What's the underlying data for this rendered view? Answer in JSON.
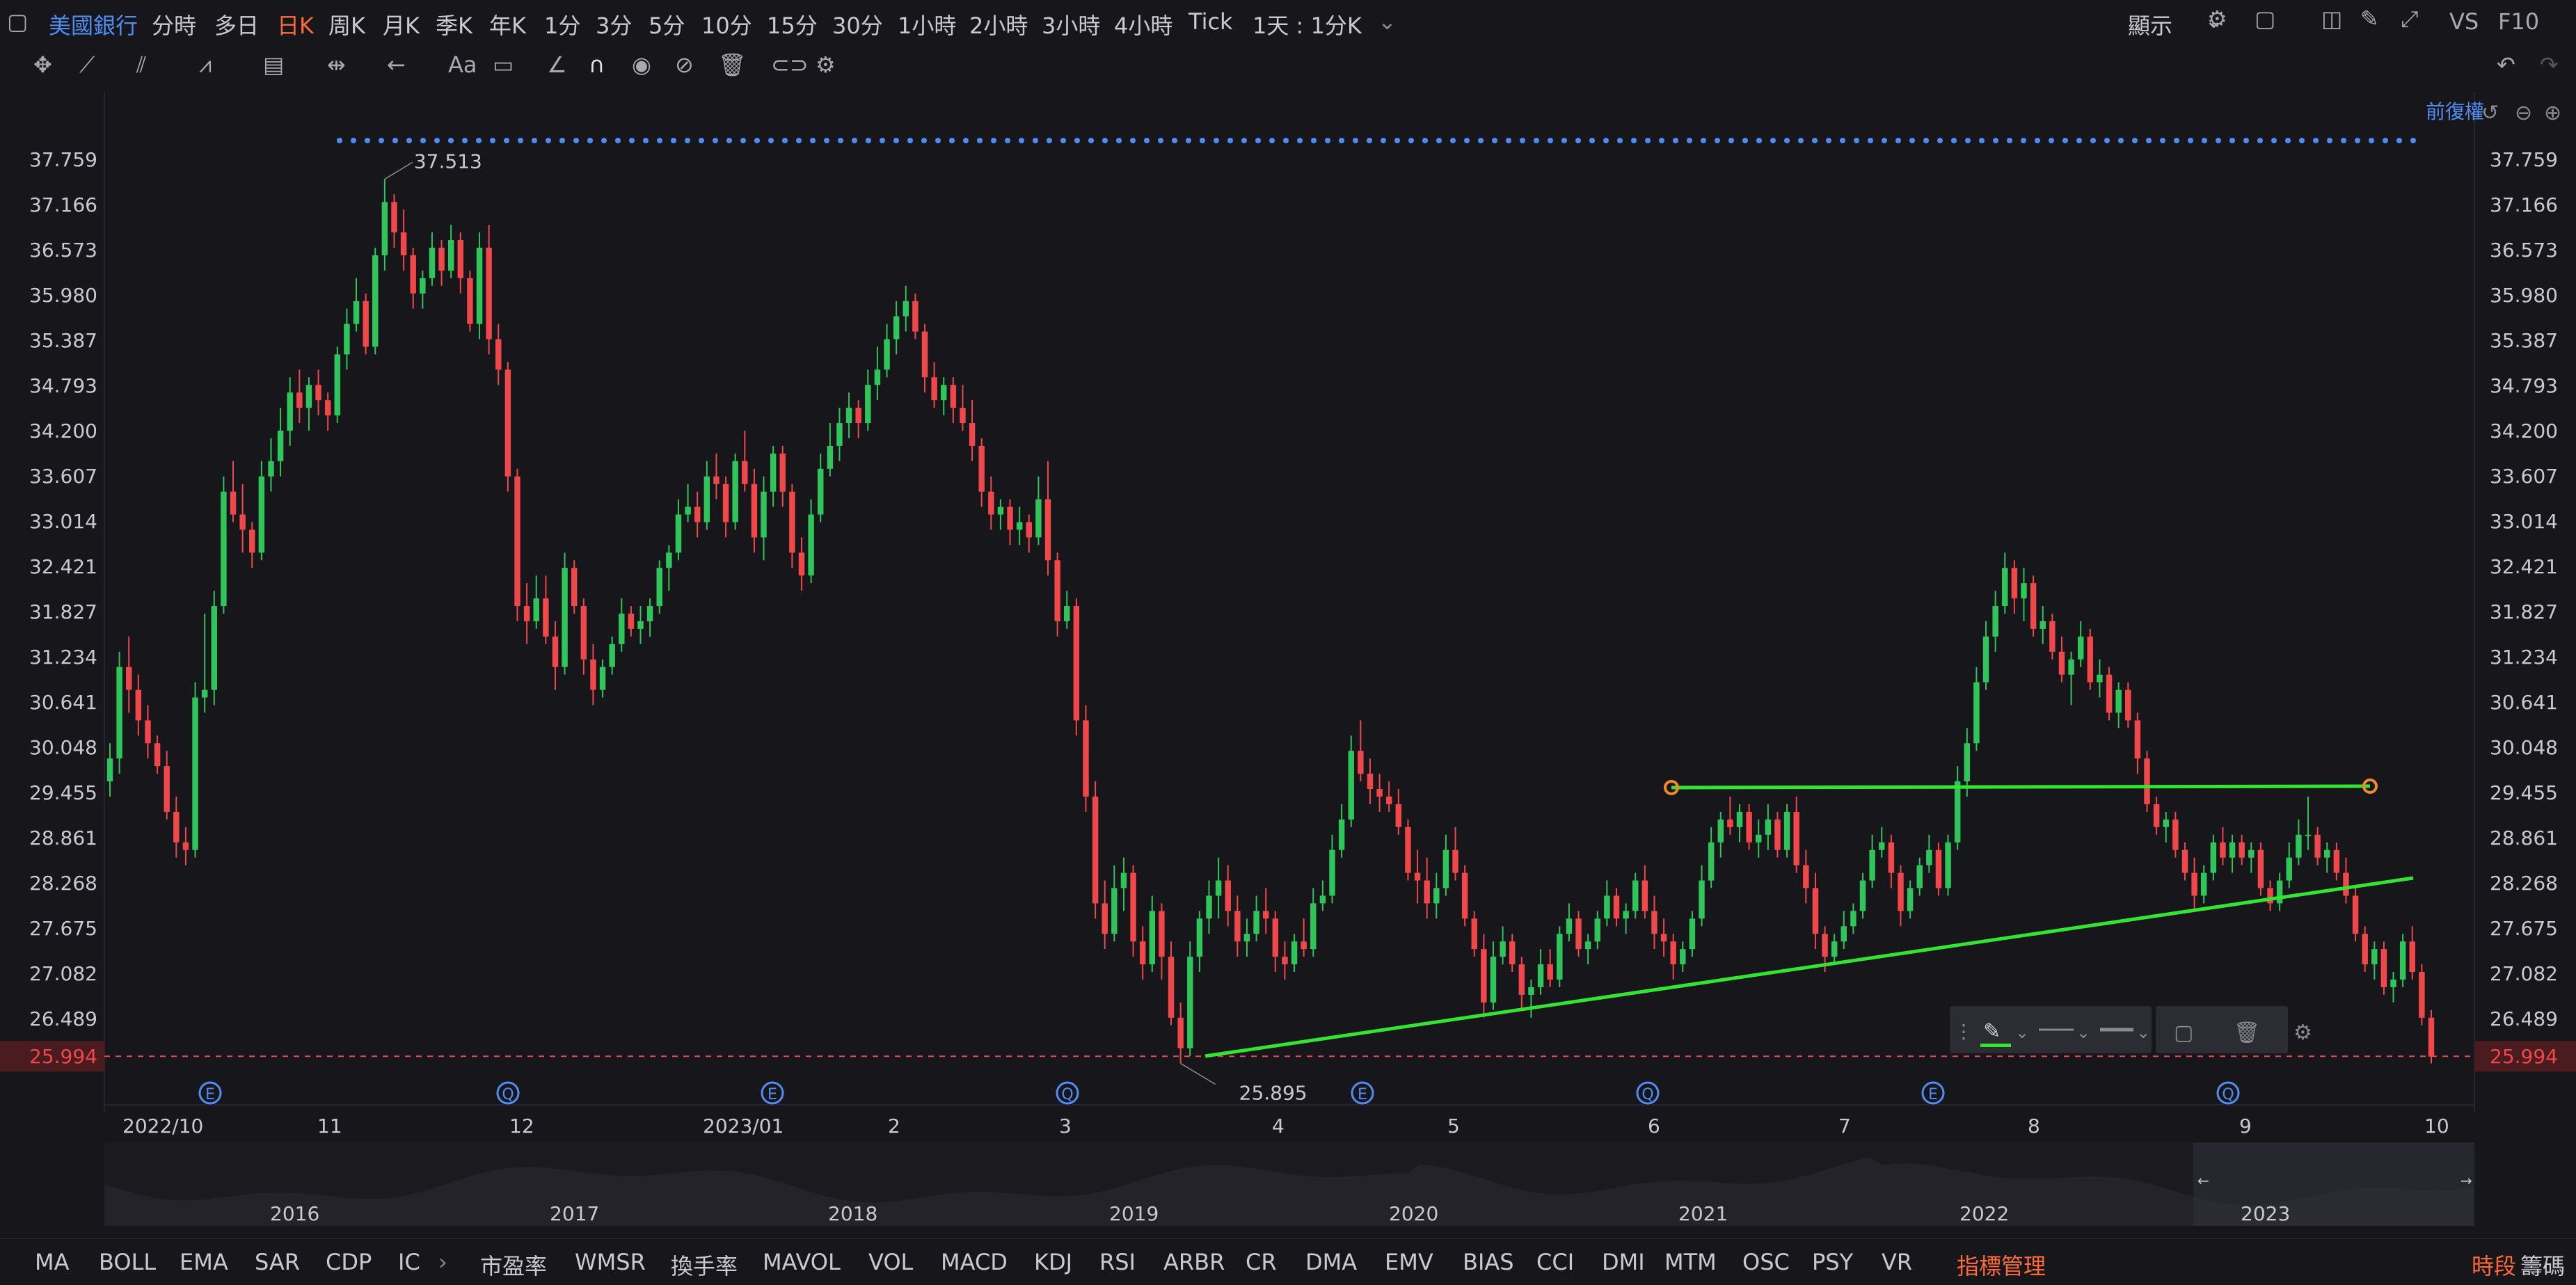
{
  "header": {
    "symbol": "美國銀行",
    "periods": [
      "分時",
      "多日",
      "日K",
      "周K",
      "月K",
      "季K",
      "年K",
      "1分",
      "3分",
      "5分",
      "10分",
      "15分",
      "30分",
      "1小時",
      "2小時",
      "3小時",
      "4小時",
      "Tick"
    ],
    "active_period": "日K",
    "range": "1天 : 1分K",
    "display": "顯示",
    "vs": "VS",
    "f10": "F10",
    "adjust": "前復權"
  },
  "chart_data": {
    "type": "candlestick",
    "y_ticks": [
      37.759,
      37.166,
      36.573,
      35.98,
      35.387,
      34.793,
      34.2,
      33.607,
      33.014,
      32.421,
      31.827,
      31.234,
      30.641,
      30.048,
      29.455,
      28.861,
      28.268,
      27.675,
      27.082,
      26.489
    ],
    "current_price": 25.994,
    "x_ticks": [
      "2022/10",
      "11",
      "12",
      "2023/01",
      "2",
      "3",
      "4",
      "5",
      "6",
      "7",
      "8",
      "9",
      "10"
    ],
    "annotations": {
      "high_label": "37.513",
      "low_label": "25.895"
    },
    "event_markers": [
      "E",
      "Q",
      "E",
      "Q",
      "E",
      "Q",
      "E",
      "Q"
    ],
    "navigator_years": [
      "2016",
      "2017",
      "2018",
      "2019",
      "2020",
      "2021",
      "2022",
      "2023"
    ],
    "colors": {
      "up": "#2fc55a",
      "down": "#f0474b",
      "trendline": "#33e433",
      "dots": "#4f8df5",
      "current": "#f0474b",
      "marker": "#4f8df5"
    },
    "candles": [
      [
        29.6,
        30.1,
        29.4,
        29.9
      ],
      [
        29.9,
        31.3,
        29.7,
        31.1
      ],
      [
        31.1,
        31.5,
        30.5,
        30.8
      ],
      [
        30.8,
        31.0,
        30.2,
        30.4
      ],
      [
        30.4,
        30.6,
        29.9,
        30.1
      ],
      [
        30.1,
        30.2,
        29.7,
        29.8
      ],
      [
        29.8,
        30.0,
        29.1,
        29.2
      ],
      [
        29.2,
        29.4,
        28.6,
        28.8
      ],
      [
        28.8,
        29.0,
        28.5,
        28.7
      ],
      [
        28.7,
        30.9,
        28.6,
        30.7
      ],
      [
        30.7,
        31.8,
        30.5,
        30.8
      ],
      [
        30.8,
        32.1,
        30.6,
        31.9
      ],
      [
        31.9,
        33.6,
        31.8,
        33.4
      ],
      [
        33.4,
        33.8,
        33.0,
        33.1
      ],
      [
        33.1,
        33.5,
        32.6,
        32.9
      ],
      [
        32.9,
        33.0,
        32.4,
        32.6
      ],
      [
        32.6,
        33.8,
        32.5,
        33.6
      ],
      [
        33.6,
        34.1,
        33.4,
        33.8
      ],
      [
        33.8,
        34.5,
        33.6,
        34.2
      ],
      [
        34.2,
        34.9,
        34.0,
        34.7
      ],
      [
        34.7,
        35.0,
        34.3,
        34.5
      ],
      [
        34.5,
        34.9,
        34.2,
        34.8
      ],
      [
        34.8,
        35.0,
        34.4,
        34.6
      ],
      [
        34.6,
        34.7,
        34.2,
        34.4
      ],
      [
        34.4,
        35.3,
        34.3,
        35.2
      ],
      [
        35.2,
        35.8,
        35.0,
        35.6
      ],
      [
        35.6,
        36.2,
        35.5,
        35.9
      ],
      [
        35.9,
        36.0,
        35.2,
        35.3
      ],
      [
        35.3,
        36.6,
        35.2,
        36.5
      ],
      [
        36.5,
        37.5,
        36.3,
        37.2
      ],
      [
        37.2,
        37.3,
        36.6,
        36.8
      ],
      [
        36.8,
        37.1,
        36.3,
        36.5
      ],
      [
        36.5,
        36.6,
        35.8,
        36.0
      ],
      [
        36.0,
        36.3,
        35.8,
        36.2
      ],
      [
        36.2,
        36.8,
        36.1,
        36.6
      ],
      [
        36.6,
        36.7,
        36.1,
        36.3
      ],
      [
        36.3,
        36.9,
        36.2,
        36.7
      ],
      [
        36.7,
        36.8,
        36.0,
        36.2
      ],
      [
        36.2,
        36.3,
        35.5,
        35.6
      ],
      [
        35.6,
        36.8,
        35.4,
        36.6
      ],
      [
        36.6,
        36.9,
        35.2,
        35.4
      ],
      [
        35.4,
        35.6,
        34.8,
        35.0
      ],
      [
        35.0,
        35.1,
        33.4,
        33.6
      ],
      [
        33.6,
        33.7,
        31.7,
        31.9
      ],
      [
        31.9,
        32.2,
        31.4,
        31.7
      ],
      [
        31.7,
        32.3,
        31.6,
        32.0
      ],
      [
        32.0,
        32.3,
        31.4,
        31.5
      ],
      [
        31.5,
        31.7,
        30.8,
        31.1
      ],
      [
        31.1,
        32.6,
        31.0,
        32.4
      ],
      [
        32.4,
        32.5,
        31.8,
        31.9
      ],
      [
        31.9,
        32.0,
        31.0,
        31.2
      ],
      [
        31.2,
        31.4,
        30.6,
        30.8
      ],
      [
        30.8,
        31.2,
        30.7,
        31.1
      ],
      [
        31.1,
        31.5,
        31.0,
        31.4
      ],
      [
        31.4,
        32.0,
        31.3,
        31.8
      ],
      [
        31.8,
        31.9,
        31.5,
        31.6
      ],
      [
        31.6,
        31.9,
        31.4,
        31.7
      ],
      [
        31.7,
        32.0,
        31.5,
        31.9
      ],
      [
        31.9,
        32.5,
        31.8,
        32.4
      ],
      [
        32.4,
        32.7,
        32.1,
        32.6
      ],
      [
        32.6,
        33.3,
        32.5,
        33.1
      ],
      [
        33.1,
        33.5,
        33.0,
        33.2
      ],
      [
        33.2,
        33.4,
        32.8,
        33.0
      ],
      [
        33.0,
        33.8,
        32.9,
        33.6
      ],
      [
        33.6,
        33.9,
        33.3,
        33.5
      ],
      [
        33.5,
        33.6,
        32.8,
        33.0
      ],
      [
        33.0,
        33.9,
        32.9,
        33.8
      ],
      [
        33.8,
        34.2,
        33.4,
        33.5
      ],
      [
        33.5,
        33.7,
        32.6,
        32.8
      ],
      [
        32.8,
        33.6,
        32.5,
        33.4
      ],
      [
        33.4,
        34.0,
        33.2,
        33.9
      ],
      [
        33.9,
        34.0,
        33.2,
        33.4
      ],
      [
        33.4,
        33.5,
        32.4,
        32.6
      ],
      [
        32.6,
        32.8,
        32.1,
        32.3
      ],
      [
        32.3,
        33.3,
        32.2,
        33.1
      ],
      [
        33.1,
        33.9,
        33.0,
        33.7
      ],
      [
        33.7,
        34.3,
        33.6,
        34.0
      ],
      [
        34.0,
        34.5,
        33.8,
        34.3
      ],
      [
        34.3,
        34.7,
        34.1,
        34.5
      ],
      [
        34.5,
        34.6,
        34.1,
        34.3
      ],
      [
        34.3,
        35.0,
        34.2,
        34.8
      ],
      [
        34.8,
        35.3,
        34.6,
        35.0
      ],
      [
        35.0,
        35.6,
        34.9,
        35.4
      ],
      [
        35.4,
        35.9,
        35.2,
        35.7
      ],
      [
        35.7,
        36.1,
        35.5,
        35.9
      ],
      [
        35.9,
        36.0,
        35.4,
        35.5
      ],
      [
        35.5,
        35.6,
        34.7,
        34.9
      ],
      [
        34.9,
        35.1,
        34.5,
        34.6
      ],
      [
        34.6,
        34.9,
        34.4,
        34.8
      ],
      [
        34.8,
        34.9,
        34.3,
        34.5
      ],
      [
        34.5,
        34.8,
        34.2,
        34.3
      ],
      [
        34.3,
        34.6,
        33.8,
        34.0
      ],
      [
        34.0,
        34.1,
        33.2,
        33.4
      ],
      [
        33.4,
        33.6,
        32.9,
        33.1
      ],
      [
        33.1,
        33.3,
        32.9,
        33.2
      ],
      [
        33.2,
        33.3,
        32.7,
        32.9
      ],
      [
        32.9,
        33.2,
        32.7,
        33.0
      ],
      [
        33.0,
        33.1,
        32.6,
        32.8
      ],
      [
        32.8,
        33.6,
        32.7,
        33.3
      ],
      [
        33.3,
        33.8,
        32.3,
        32.5
      ],
      [
        32.5,
        32.6,
        31.5,
        31.7
      ],
      [
        31.7,
        32.1,
        31.6,
        31.9
      ],
      [
        31.9,
        32.0,
        30.2,
        30.4
      ],
      [
        30.4,
        30.6,
        29.2,
        29.4
      ],
      [
        29.4,
        29.6,
        27.8,
        28.0
      ],
      [
        28.0,
        28.3,
        27.4,
        27.6
      ],
      [
        27.6,
        28.5,
        27.5,
        28.2
      ],
      [
        28.2,
        28.6,
        27.9,
        28.4
      ],
      [
        28.4,
        28.5,
        27.3,
        27.5
      ],
      [
        27.5,
        27.7,
        27.0,
        27.2
      ],
      [
        27.2,
        28.1,
        27.1,
        27.9
      ],
      [
        27.9,
        28.0,
        27.0,
        27.3
      ],
      [
        27.3,
        27.5,
        26.4,
        26.5
      ],
      [
        26.5,
        26.7,
        25.9,
        26.1
      ],
      [
        26.1,
        27.5,
        26.0,
        27.3
      ],
      [
        27.3,
        27.9,
        27.1,
        27.8
      ],
      [
        27.8,
        28.3,
        27.6,
        28.1
      ],
      [
        28.1,
        28.6,
        27.8,
        28.3
      ],
      [
        28.3,
        28.5,
        27.7,
        27.9
      ],
      [
        27.9,
        28.1,
        27.3,
        27.5
      ],
      [
        27.5,
        27.8,
        27.3,
        27.6
      ],
      [
        27.6,
        28.1,
        27.5,
        27.9
      ],
      [
        27.9,
        28.2,
        27.6,
        27.8
      ],
      [
        27.8,
        27.9,
        27.1,
        27.3
      ],
      [
        27.3,
        27.5,
        27.0,
        27.2
      ],
      [
        27.2,
        27.6,
        27.1,
        27.5
      ],
      [
        27.5,
        27.8,
        27.3,
        27.4
      ],
      [
        27.4,
        28.2,
        27.3,
        28.0
      ],
      [
        28.0,
        28.3,
        27.9,
        28.1
      ],
      [
        28.1,
        28.9,
        28.0,
        28.7
      ],
      [
        28.7,
        29.3,
        28.6,
        29.1
      ],
      [
        29.1,
        30.2,
        29.0,
        30.0
      ],
      [
        30.0,
        30.4,
        29.6,
        29.7
      ],
      [
        29.7,
        29.9,
        29.3,
        29.5
      ],
      [
        29.5,
        29.7,
        29.2,
        29.4
      ],
      [
        29.4,
        29.6,
        29.2,
        29.3
      ],
      [
        29.3,
        29.5,
        28.9,
        29.0
      ],
      [
        29.0,
        29.1,
        28.3,
        28.4
      ],
      [
        28.4,
        28.7,
        28.0,
        28.3
      ],
      [
        28.3,
        28.6,
        27.8,
        28.0
      ],
      [
        28.0,
        28.4,
        27.8,
        28.2
      ],
      [
        28.2,
        28.9,
        28.1,
        28.7
      ],
      [
        28.7,
        29.0,
        28.3,
        28.4
      ],
      [
        28.4,
        28.5,
        27.7,
        27.8
      ],
      [
        27.8,
        27.9,
        27.3,
        27.4
      ],
      [
        27.4,
        27.6,
        26.5,
        26.7
      ],
      [
        26.7,
        27.5,
        26.6,
        27.3
      ],
      [
        27.3,
        27.7,
        27.2,
        27.5
      ],
      [
        27.5,
        27.6,
        27.1,
        27.2
      ],
      [
        27.2,
        27.3,
        26.6,
        26.8
      ],
      [
        26.8,
        27.0,
        26.5,
        26.9
      ],
      [
        26.9,
        27.4,
        26.8,
        27.2
      ],
      [
        27.2,
        27.4,
        26.9,
        27.0
      ],
      [
        27.0,
        27.7,
        26.9,
        27.6
      ],
      [
        27.6,
        28.0,
        27.5,
        27.8
      ],
      [
        27.8,
        27.9,
        27.3,
        27.4
      ],
      [
        27.4,
        27.6,
        27.2,
        27.5
      ],
      [
        27.5,
        27.9,
        27.4,
        27.8
      ],
      [
        27.8,
        28.3,
        27.7,
        28.1
      ],
      [
        28.1,
        28.2,
        27.7,
        27.8
      ],
      [
        27.8,
        28.0,
        27.6,
        27.9
      ],
      [
        27.9,
        28.4,
        27.8,
        28.3
      ],
      [
        28.3,
        28.5,
        27.8,
        27.9
      ],
      [
        27.9,
        28.1,
        27.4,
        27.6
      ],
      [
        27.6,
        27.8,
        27.3,
        27.5
      ],
      [
        27.5,
        27.6,
        27.0,
        27.2
      ],
      [
        27.2,
        27.5,
        27.1,
        27.4
      ],
      [
        27.4,
        27.9,
        27.3,
        27.8
      ],
      [
        27.8,
        28.5,
        27.7,
        28.3
      ],
      [
        28.3,
        29.0,
        28.2,
        28.8
      ],
      [
        28.8,
        29.2,
        28.6,
        29.1
      ],
      [
        29.1,
        29.4,
        28.9,
        29.0
      ],
      [
        29.0,
        29.3,
        28.8,
        29.2
      ],
      [
        29.2,
        29.3,
        28.7,
        28.8
      ],
      [
        28.8,
        29.1,
        28.6,
        28.9
      ],
      [
        28.9,
        29.3,
        28.7,
        29.1
      ],
      [
        29.1,
        29.2,
        28.6,
        28.7
      ],
      [
        28.7,
        29.3,
        28.6,
        29.2
      ],
      [
        29.2,
        29.4,
        28.4,
        28.5
      ],
      [
        28.5,
        28.7,
        28.0,
        28.2
      ],
      [
        28.2,
        28.4,
        27.4,
        27.6
      ],
      [
        27.6,
        27.7,
        27.1,
        27.3
      ],
      [
        27.3,
        27.6,
        27.2,
        27.5
      ],
      [
        27.5,
        27.9,
        27.4,
        27.7
      ],
      [
        27.7,
        28.0,
        27.6,
        27.9
      ],
      [
        27.9,
        28.4,
        27.8,
        28.3
      ],
      [
        28.3,
        28.9,
        28.2,
        28.7
      ],
      [
        28.7,
        29.0,
        28.6,
        28.8
      ],
      [
        28.8,
        28.9,
        28.2,
        28.4
      ],
      [
        28.4,
        28.5,
        27.7,
        27.9
      ],
      [
        27.9,
        28.3,
        27.8,
        28.2
      ],
      [
        28.2,
        28.6,
        28.1,
        28.5
      ],
      [
        28.5,
        28.9,
        28.4,
        28.7
      ],
      [
        28.7,
        28.8,
        28.1,
        28.2
      ],
      [
        28.2,
        28.9,
        28.1,
        28.8
      ],
      [
        28.8,
        29.8,
        28.7,
        29.6
      ],
      [
        29.6,
        30.3,
        29.4,
        30.1
      ],
      [
        30.1,
        31.1,
        30.0,
        30.9
      ],
      [
        30.9,
        31.7,
        30.8,
        31.5
      ],
      [
        31.5,
        32.1,
        31.3,
        31.9
      ],
      [
        31.9,
        32.6,
        31.8,
        32.4
      ],
      [
        32.4,
        32.5,
        31.8,
        32.0
      ],
      [
        32.0,
        32.4,
        31.7,
        32.2
      ],
      [
        32.2,
        32.3,
        31.5,
        31.6
      ],
      [
        31.6,
        31.9,
        31.4,
        31.7
      ],
      [
        31.7,
        31.8,
        31.2,
        31.3
      ],
      [
        31.3,
        31.5,
        30.9,
        31.0
      ],
      [
        31.0,
        31.3,
        30.6,
        31.2
      ],
      [
        31.2,
        31.7,
        31.1,
        31.5
      ],
      [
        31.5,
        31.6,
        30.8,
        30.9
      ],
      [
        30.9,
        31.2,
        30.7,
        31.0
      ],
      [
        31.0,
        31.1,
        30.4,
        30.5
      ],
      [
        30.5,
        30.9,
        30.3,
        30.8
      ],
      [
        30.8,
        30.9,
        30.3,
        30.4
      ],
      [
        30.4,
        30.5,
        29.7,
        29.9
      ],
      [
        29.9,
        30.0,
        29.2,
        29.3
      ],
      [
        29.3,
        29.4,
        28.9,
        29.0
      ],
      [
        29.0,
        29.2,
        28.8,
        29.1
      ],
      [
        29.1,
        29.2,
        28.6,
        28.7
      ],
      [
        28.7,
        28.8,
        28.3,
        28.4
      ],
      [
        28.4,
        28.6,
        27.9,
        28.1
      ],
      [
        28.1,
        28.5,
        28.0,
        28.4
      ],
      [
        28.4,
        28.9,
        28.3,
        28.8
      ],
      [
        28.8,
        29.0,
        28.5,
        28.6
      ],
      [
        28.6,
        28.9,
        28.4,
        28.8
      ],
      [
        28.8,
        28.9,
        28.5,
        28.6
      ],
      [
        28.6,
        28.8,
        28.4,
        28.7
      ],
      [
        28.7,
        28.8,
        28.1,
        28.2
      ],
      [
        28.2,
        28.3,
        27.9,
        28.0
      ],
      [
        28.0,
        28.4,
        27.9,
        28.3
      ],
      [
        28.3,
        28.8,
        28.2,
        28.6
      ],
      [
        28.6,
        29.1,
        28.5,
        28.9
      ],
      [
        28.9,
        29.4,
        28.7,
        28.9
      ],
      [
        28.9,
        29.0,
        28.5,
        28.6
      ],
      [
        28.6,
        28.8,
        28.4,
        28.7
      ],
      [
        28.7,
        28.8,
        28.3,
        28.4
      ],
      [
        28.4,
        28.6,
        28.0,
        28.1
      ],
      [
        28.1,
        28.2,
        27.5,
        27.6
      ],
      [
        27.6,
        27.7,
        27.1,
        27.2
      ],
      [
        27.2,
        27.5,
        27.0,
        27.4
      ],
      [
        27.4,
        27.5,
        26.8,
        26.9
      ],
      [
        26.9,
        27.1,
        26.7,
        27.0
      ],
      [
        27.0,
        27.6,
        26.9,
        27.5
      ],
      [
        27.5,
        27.7,
        27.0,
        27.1
      ],
      [
        27.1,
        27.2,
        26.4,
        26.5
      ],
      [
        26.5,
        26.6,
        25.9,
        25.99
      ]
    ]
  },
  "drawings_tool": {
    "active_color": "#33e433"
  },
  "indicators": [
    "MA",
    "BOLL",
    "EMA",
    "SAR",
    "CDP",
    "IC",
    "市盈率",
    "WMSR",
    "換手率",
    "MAVOL",
    "VOL",
    "MACD",
    "KDJ",
    "RSI",
    "ARBR",
    "CR",
    "DMA",
    "EMV",
    "BIAS",
    "CCI",
    "DMI",
    "MTM",
    "OSC",
    "PSY",
    "VR",
    "指標管理"
  ],
  "bottom_right": {
    "tab1": "時段",
    "tab2": "籌碼"
  }
}
